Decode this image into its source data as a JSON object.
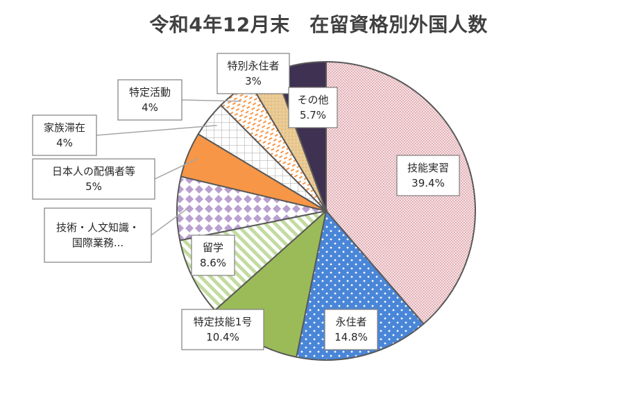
{
  "chart_data": {
    "type": "pie",
    "title": "令和4年12月末　在留資格別外国人数",
    "unit": "%",
    "slices": [
      {
        "name": "技能実習",
        "value": 39.4,
        "label": "39.4%",
        "color": "#f2d0d3",
        "pattern": "pink-dots"
      },
      {
        "name": "永住者",
        "value": 14.8,
        "label": "14.8%",
        "color": "#4a86d8",
        "pattern": "white-dots"
      },
      {
        "name": "特定技能1号",
        "value": 10.4,
        "label": "10.4%",
        "color": "#9bbb59",
        "pattern": "solid"
      },
      {
        "name": "留学",
        "value": 8.6,
        "label": "8.6%",
        "color": "#c3dba0",
        "pattern": "diagonal-stripes"
      },
      {
        "name": "技術・人文知識・国際業務...",
        "lines": [
          "技術・人文知識・",
          "国際業務..."
        ],
        "value": 7.0,
        "label": "",
        "color": "#b9a0d0",
        "pattern": "diamonds"
      },
      {
        "name": "日本人の配偶者等",
        "value": 5,
        "label": "5%",
        "color": "#f79646",
        "pattern": "solid"
      },
      {
        "name": "家族滞在",
        "value": 4,
        "label": "4%",
        "color": "#d9d9d9",
        "pattern": "grid"
      },
      {
        "name": "特定活動",
        "value": 4,
        "label": "4%",
        "color": "#f79646",
        "pattern": "orange-dashes"
      },
      {
        "name": "特別永住者",
        "value": 3,
        "label": "3%",
        "color": "#e6c591",
        "pattern": "sand"
      },
      {
        "name": "その他",
        "value": 5.7,
        "label": "5.7%",
        "color": "#3f3151",
        "pattern": "solid"
      }
    ]
  }
}
